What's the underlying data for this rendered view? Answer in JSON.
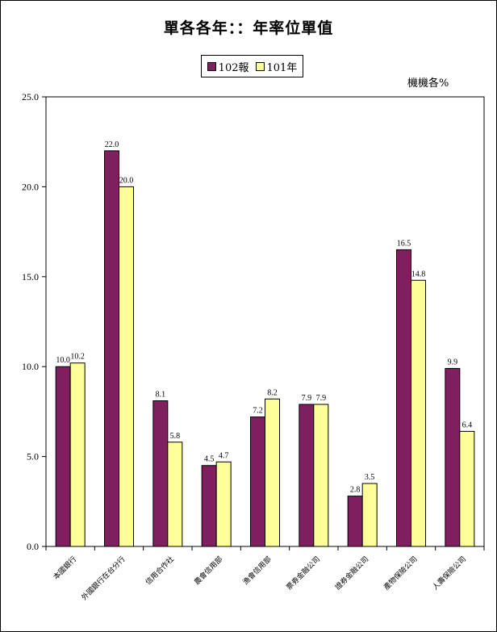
{
  "chart_data": {
    "type": "bar",
    "title": "單各各年：：年率位單值",
    "unit_label": "機機各%",
    "categories": [
      "本國銀行",
      "外國銀行在台分行",
      "信用合作社",
      "農會信用部",
      "漁會信用部",
      "票券金融公司",
      "證券金融公司",
      "產物保險公司",
      "人壽保險公司"
    ],
    "series": [
      {
        "name": "102報",
        "color": "#7f1f5f",
        "values": [
          10.0,
          22.0,
          8.1,
          4.5,
          7.2,
          7.9,
          2.8,
          16.5,
          9.9
        ],
        "labels": [
          "10.0",
          "22.0",
          "8.1",
          "4.5",
          "7.2",
          "7.9",
          "2.8",
          "16.5",
          "9.9"
        ]
      },
      {
        "name": "101年",
        "color": "#ffff99",
        "values": [
          10.2,
          20.0,
          5.8,
          4.7,
          8.2,
          7.9,
          3.5,
          14.8,
          6.4
        ],
        "labels": [
          "10.2",
          "20.0",
          "5.8",
          "4.7",
          "8.2",
          "7.9",
          "3.5",
          "14.8",
          "6.4"
        ]
      }
    ],
    "ylim": [
      0,
      25
    ],
    "yticks": [
      "0.0",
      "5.0",
      "10.0",
      "15.0",
      "20.0",
      "25.0"
    ],
    "grid": false,
    "legend_position": "top"
  }
}
